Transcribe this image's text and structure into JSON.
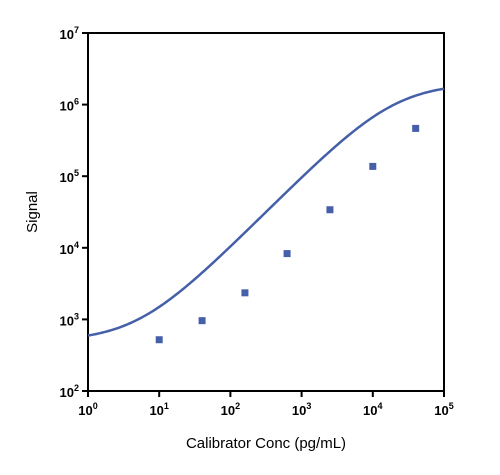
{
  "chart_data": {
    "type": "scatter",
    "xlabel": "Calibrator Conc (pg/mL)",
    "ylabel": "Signal",
    "xscale": "log",
    "yscale": "log",
    "xlim": [
      1,
      100000
    ],
    "ylim": [
      100,
      10000000
    ],
    "x_ticks": [
      {
        "base": "10",
        "exp": "0",
        "value": 1
      },
      {
        "base": "10",
        "exp": "1",
        "value": 10
      },
      {
        "base": "10",
        "exp": "2",
        "value": 100
      },
      {
        "base": "10",
        "exp": "3",
        "value": 1000
      },
      {
        "base": "10",
        "exp": "4",
        "value": 10000
      },
      {
        "base": "10",
        "exp": "5",
        "value": 100000
      }
    ],
    "y_ticks": [
      {
        "base": "10",
        "exp": "2",
        "value": 100
      },
      {
        "base": "10",
        "exp": "3",
        "value": 1000
      },
      {
        "base": "10",
        "exp": "4",
        "value": 10000
      },
      {
        "base": "10",
        "exp": "5",
        "value": 100000
      },
      {
        "base": "10",
        "exp": "6",
        "value": 1000000
      },
      {
        "base": "10",
        "exp": "7",
        "value": 10000000
      }
    ],
    "grid": false,
    "legend": "none",
    "series": [
      {
        "color": "#4560a8",
        "marker": "square",
        "points": [
          {
            "x": 10,
            "y": 520
          },
          {
            "x": 40,
            "y": 960
          },
          {
            "x": 160,
            "y": 2350
          },
          {
            "x": 625,
            "y": 8300
          },
          {
            "x": 2500,
            "y": 34000
          },
          {
            "x": 10000,
            "y": 137000
          },
          {
            "x": 40000,
            "y": 465000
          }
        ],
        "fit": {
          "model": "4PL",
          "bottom": 495,
          "top": 2000000,
          "ec50": 20000,
          "hill": 1.0,
          "color": "#4560a8"
        }
      }
    ]
  }
}
